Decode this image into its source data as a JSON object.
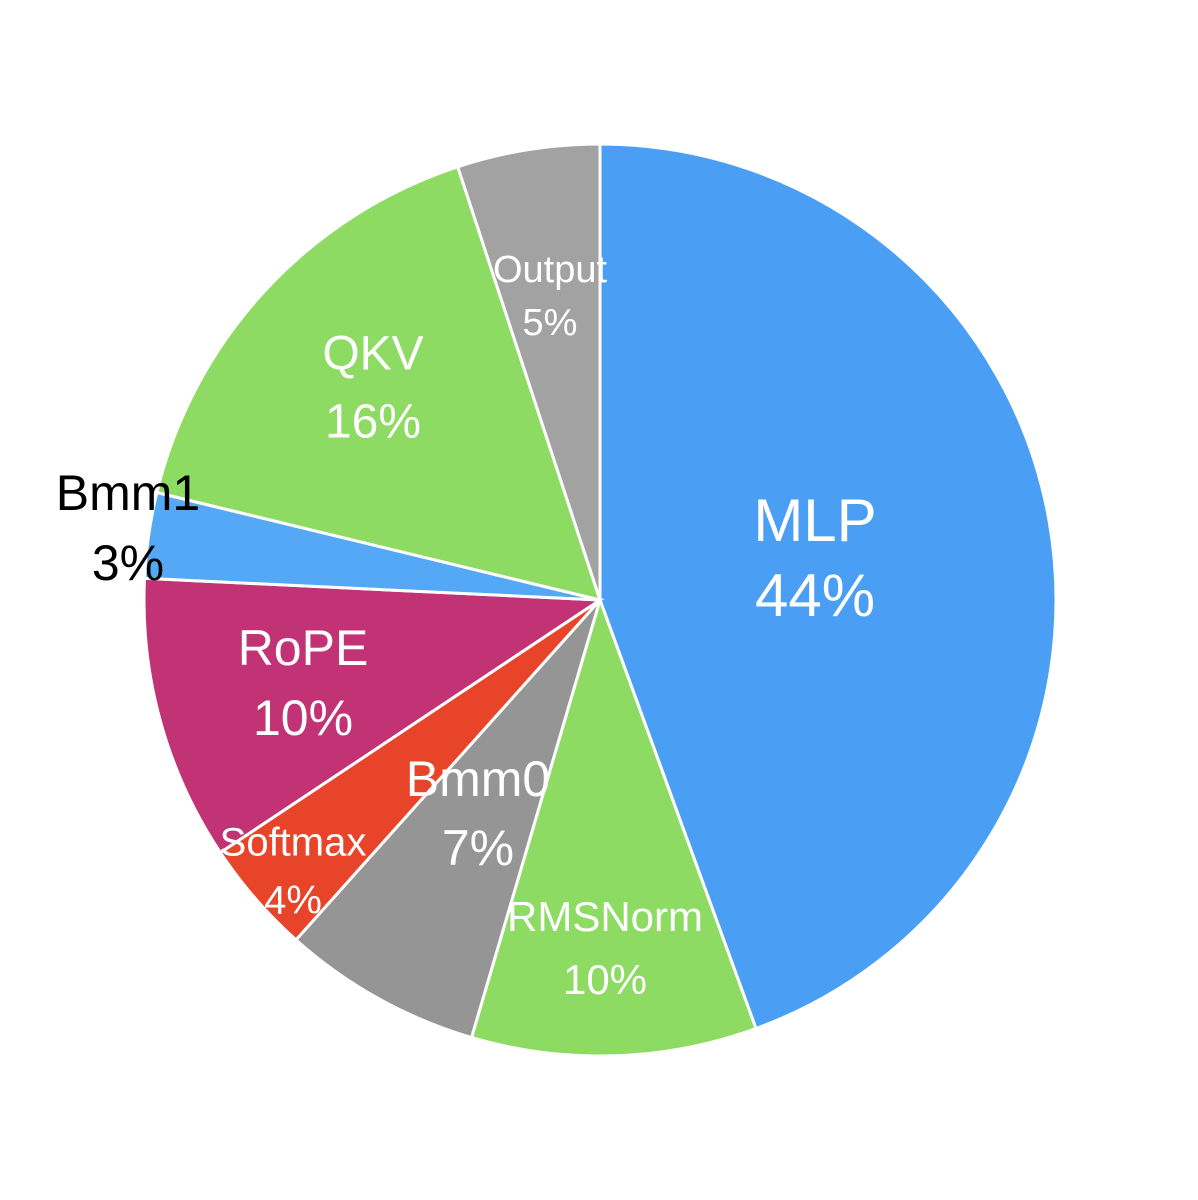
{
  "chart_data": {
    "type": "pie",
    "categories": [
      "MLP",
      "RMSNorm",
      "Bmm0",
      "Softmax",
      "RoPE",
      "Bmm1",
      "QKV",
      "Output"
    ],
    "values": [
      44,
      10,
      7,
      4,
      10,
      3,
      16,
      5
    ],
    "value_labels": [
      "44%",
      "10%",
      "7%",
      "4%",
      "10%",
      "3%",
      "16%",
      "5%"
    ],
    "colors": [
      "#4a9ff5",
      "#8ddb62",
      "#959595",
      "#e8442a",
      "#c23376",
      "#55a8f6",
      "#8ddb62",
      "#a2a2a2"
    ]
  }
}
